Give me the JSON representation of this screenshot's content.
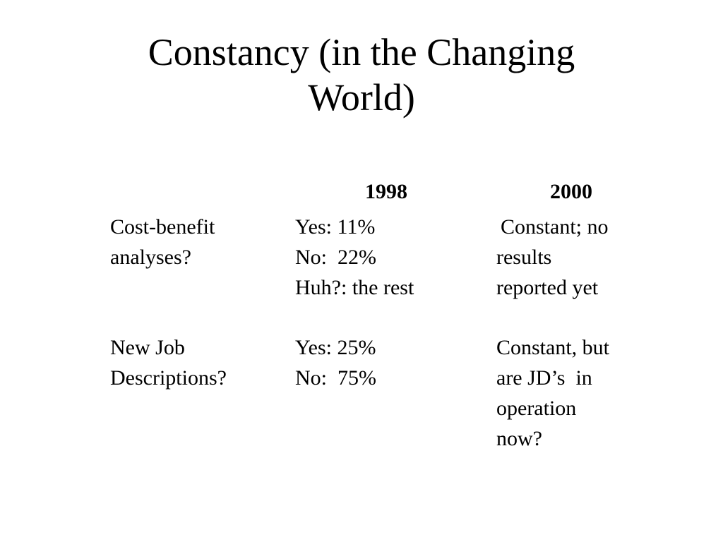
{
  "title": {
    "line1": "Constancy (in the Changing",
    "line2": "World)"
  },
  "columns": {
    "year_1998": "1998",
    "year_2000": "2000"
  },
  "rows": [
    {
      "label": [
        "Cost-benefit",
        "analyses?"
      ],
      "y1998": [
        "Yes: 11%",
        "No:  22%",
        "Huh?: the rest"
      ],
      "y2000": [
        "Constant; no",
        "results",
        "reported yet"
      ]
    },
    {
      "label": [
        "New Job",
        "Descriptions?"
      ],
      "y1998": [
        "Yes: 25%",
        "No:  75%"
      ],
      "y2000": [
        "Constant, but",
        "are JD’s  in",
        "operation",
        "now?"
      ]
    }
  ]
}
